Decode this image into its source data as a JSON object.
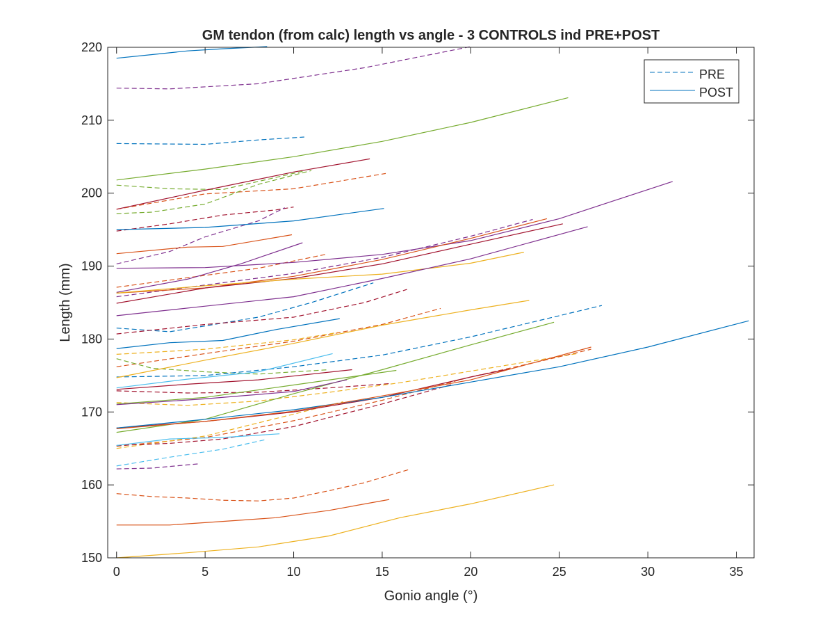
{
  "chart_data": {
    "type": "line",
    "title": "GM tendon (from calc) length vs angle - 3 CONTROLS ind PRE+POST",
    "xlabel": "Gonio angle (°)",
    "ylabel": "Length (mm)",
    "xlim": [
      -0.5,
      36
    ],
    "ylim": [
      150,
      220
    ],
    "xticks": [
      0,
      5,
      10,
      15,
      20,
      25,
      30,
      35
    ],
    "yticks": [
      150,
      160,
      170,
      180,
      190,
      200,
      210,
      220
    ],
    "grid": false,
    "legend": {
      "position": "top-right",
      "entries": [
        {
          "label": "PRE",
          "style": "dashed",
          "color": "#0072BD"
        },
        {
          "label": "POST",
          "style": "solid",
          "color": "#0072BD"
        }
      ]
    },
    "colors": {
      "blue": "#0072BD",
      "orange": "#D95319",
      "yellow": "#EDB120",
      "purple": "#7E2F8E",
      "green": "#77AC30",
      "cyan": "#4DBEEE",
      "maroon": "#A2142F"
    },
    "series": [
      {
        "group": "PRE",
        "color": "blue",
        "x": [
          0,
          5,
          8,
          10.6
        ],
        "y": [
          206.8,
          206.7,
          207.3,
          207.7
        ]
      },
      {
        "group": "PRE",
        "color": "purple",
        "x": [
          0,
          3,
          8,
          14,
          20
        ],
        "y": [
          214.4,
          214.3,
          215.0,
          217.2,
          220.1
        ]
      },
      {
        "group": "PRE",
        "color": "green",
        "x": [
          0,
          3,
          6,
          10.5
        ],
        "y": [
          201.1,
          200.6,
          200.5,
          203.0
        ]
      },
      {
        "group": "PRE",
        "color": "orange",
        "x": [
          0,
          5,
          10,
          15.2
        ],
        "y": [
          197.8,
          199.9,
          200.6,
          202.7
        ]
      },
      {
        "group": "PRE",
        "color": "green",
        "x": [
          0,
          2,
          5,
          8,
          11
        ],
        "y": [
          197.2,
          197.4,
          198.5,
          201.2,
          203.1
        ]
      },
      {
        "group": "PRE",
        "color": "maroon",
        "x": [
          0,
          3,
          6,
          9,
          10
        ],
        "y": [
          194.8,
          195.8,
          197.0,
          197.7,
          198.1
        ]
      },
      {
        "group": "PRE",
        "color": "purple",
        "x": [
          0,
          3,
          5,
          8,
          9.5
        ],
        "y": [
          190.3,
          192.0,
          194.0,
          196.2,
          198.0
        ]
      },
      {
        "group": "PRE",
        "color": "orange",
        "x": [
          0,
          4,
          8,
          11.8
        ],
        "y": [
          187.1,
          188.4,
          189.7,
          191.6
        ]
      },
      {
        "group": "PRE",
        "color": "purple",
        "x": [
          0,
          5,
          10,
          15,
          20,
          23.5
        ],
        "y": [
          185.8,
          187.4,
          189.0,
          191.2,
          194.1,
          196.4
        ]
      },
      {
        "group": "PRE",
        "color": "blue",
        "x": [
          0,
          3,
          5,
          8,
          11,
          14.5
        ],
        "y": [
          181.5,
          181.0,
          181.8,
          183.0,
          185.0,
          187.7
        ]
      },
      {
        "group": "PRE",
        "color": "maroon",
        "x": [
          0,
          5,
          10,
          14,
          16.4
        ],
        "y": [
          180.7,
          182.0,
          183.0,
          185.0,
          186.8
        ]
      },
      {
        "group": "PRE",
        "color": "orange",
        "x": [
          0,
          5,
          10,
          15,
          18.3
        ],
        "y": [
          176.2,
          178.0,
          179.7,
          182.0,
          184.2
        ]
      },
      {
        "group": "PRE",
        "color": "yellow",
        "x": [
          0,
          5,
          10,
          12.5
        ],
        "y": [
          177.9,
          178.6,
          179.9,
          180.9
        ]
      },
      {
        "group": "PRE",
        "color": "green",
        "x": [
          0,
          2,
          5,
          8,
          12
        ],
        "y": [
          177.3,
          176.0,
          175.5,
          175.2,
          175.8
        ]
      },
      {
        "group": "PRE",
        "color": "blue",
        "x": [
          0,
          5,
          10,
          15,
          20,
          25,
          27.4
        ],
        "y": [
          174.8,
          175.0,
          176.2,
          177.8,
          180.3,
          183.2,
          184.6
        ]
      },
      {
        "group": "PRE",
        "color": "maroon",
        "x": [
          0,
          4,
          8,
          12,
          15.5
        ],
        "y": [
          172.9,
          172.6,
          172.7,
          173.3,
          173.9
        ]
      },
      {
        "group": "PRE",
        "color": "yellow",
        "x": [
          0,
          4,
          8,
          12,
          16,
          20,
          26
        ],
        "y": [
          171.3,
          170.9,
          171.5,
          172.7,
          174.0,
          175.6,
          178.0
        ]
      },
      {
        "group": "PRE",
        "color": "orange",
        "x": [
          0,
          5,
          10,
          15,
          20,
          24,
          26.8
        ],
        "y": [
          165.3,
          166.5,
          168.8,
          171.6,
          174.8,
          177.0,
          178.6
        ]
      },
      {
        "group": "PRE",
        "color": "yellow",
        "x": [
          0,
          5,
          10,
          12.8
        ],
        "y": [
          165.0,
          166.7,
          169.7,
          171.4
        ]
      },
      {
        "group": "PRE",
        "color": "maroon",
        "x": [
          0,
          3,
          6,
          10,
          15,
          19
        ],
        "y": [
          165.4,
          165.7,
          166.3,
          168.0,
          171.1,
          173.8
        ]
      },
      {
        "group": "PRE",
        "color": "cyan",
        "x": [
          0,
          3,
          6,
          8.4
        ],
        "y": [
          162.6,
          163.8,
          164.9,
          166.2
        ]
      },
      {
        "group": "PRE",
        "color": "purple",
        "x": [
          0,
          2,
          4.7
        ],
        "y": [
          162.2,
          162.3,
          162.9
        ]
      },
      {
        "group": "PRE",
        "color": "orange",
        "x": [
          0,
          2,
          4,
          6,
          8,
          10,
          12,
          14,
          16.5
        ],
        "y": [
          158.8,
          158.4,
          158.2,
          157.9,
          157.8,
          158.2,
          159.2,
          160.3,
          162.1
        ]
      },
      {
        "group": "POST",
        "color": "blue",
        "x": [
          0,
          2,
          4,
          6,
          8.5
        ],
        "y": [
          218.5,
          219.0,
          219.5,
          219.8,
          220.1
        ]
      },
      {
        "group": "POST",
        "color": "green",
        "x": [
          0,
          5,
          10,
          15,
          20,
          25.5
        ],
        "y": [
          201.8,
          203.3,
          205.0,
          207.1,
          209.7,
          213.1
        ]
      },
      {
        "group": "POST",
        "color": "maroon",
        "x": [
          0,
          5,
          10,
          14.3
        ],
        "y": [
          197.8,
          200.4,
          202.9,
          204.7
        ]
      },
      {
        "group": "POST",
        "color": "blue",
        "x": [
          0,
          5,
          10,
          15.1
        ],
        "y": [
          195.0,
          195.3,
          196.2,
          197.9
        ]
      },
      {
        "group": "POST",
        "color": "orange",
        "x": [
          0,
          4,
          6,
          9.9
        ],
        "y": [
          191.7,
          192.6,
          192.7,
          194.3
        ]
      },
      {
        "group": "POST",
        "color": "purple",
        "x": [
          0,
          4,
          7,
          10.5
        ],
        "y": [
          186.4,
          188.2,
          190.3,
          193.2
        ]
      },
      {
        "group": "POST",
        "color": "purple",
        "x": [
          0,
          5,
          10,
          15,
          20,
          25,
          31.4
        ],
        "y": [
          189.7,
          189.8,
          190.5,
          191.6,
          193.5,
          196.5,
          201.6
        ]
      },
      {
        "group": "POST",
        "color": "orange",
        "x": [
          0,
          5,
          10,
          15,
          20,
          24.3
        ],
        "y": [
          186.3,
          187.0,
          188.6,
          190.9,
          193.8,
          196.5
        ]
      },
      {
        "group": "POST",
        "color": "maroon",
        "x": [
          0,
          5,
          10,
          15,
          20,
          25.2
        ],
        "y": [
          184.9,
          187.0,
          188.3,
          190.3,
          193.0,
          195.8
        ]
      },
      {
        "group": "POST",
        "color": "yellow",
        "x": [
          0,
          5,
          10,
          15,
          20,
          23
        ],
        "y": [
          186.3,
          187.3,
          188.2,
          188.9,
          190.4,
          191.9
        ]
      },
      {
        "group": "POST",
        "color": "purple",
        "x": [
          0,
          5,
          10,
          15,
          20,
          26.6
        ],
        "y": [
          183.2,
          184.5,
          185.8,
          188.3,
          191.0,
          195.4
        ]
      },
      {
        "group": "POST",
        "color": "blue",
        "x": [
          0,
          3,
          6,
          9,
          12.6
        ],
        "y": [
          178.7,
          179.5,
          179.8,
          181.3,
          182.8
        ]
      },
      {
        "group": "POST",
        "color": "yellow",
        "x": [
          0,
          5,
          10,
          15,
          20,
          23.3
        ],
        "y": [
          174.7,
          177.1,
          179.4,
          181.9,
          184.0,
          185.3
        ]
      },
      {
        "group": "POST",
        "color": "cyan",
        "x": [
          0,
          4,
          8,
          12.2
        ],
        "y": [
          173.3,
          174.5,
          175.5,
          178.0
        ]
      },
      {
        "group": "POST",
        "color": "maroon",
        "x": [
          0,
          4,
          8,
          13.3
        ],
        "y": [
          173.1,
          173.8,
          174.4,
          175.8
        ]
      },
      {
        "group": "POST",
        "color": "green",
        "x": [
          0,
          5,
          10,
          15.8
        ],
        "y": [
          171.1,
          172.0,
          173.7,
          175.7
        ]
      },
      {
        "group": "POST",
        "color": "green",
        "x": [
          0,
          5,
          10,
          15,
          20,
          24.7
        ],
        "y": [
          167.2,
          169.0,
          172.5,
          175.8,
          179.2,
          182.3
        ]
      },
      {
        "group": "POST",
        "color": "purple",
        "x": [
          0,
          5,
          10,
          13
        ],
        "y": [
          171.0,
          171.8,
          172.8,
          174.4
        ]
      },
      {
        "group": "POST",
        "color": "maroon",
        "x": [
          0,
          5,
          10,
          15,
          20,
          22.2
        ],
        "y": [
          167.8,
          168.7,
          170.0,
          172.0,
          174.8,
          175.9
        ]
      },
      {
        "group": "POST",
        "color": "blue",
        "x": [
          0,
          5,
          10,
          15,
          20,
          25,
          30,
          35.7
        ],
        "y": [
          167.8,
          169.0,
          170.3,
          172.0,
          174.1,
          176.2,
          178.9,
          182.5
        ]
      },
      {
        "group": "POST",
        "color": "orange",
        "x": [
          0,
          5,
          10,
          15,
          20,
          26.8
        ],
        "y": [
          167.7,
          168.7,
          170.1,
          172.2,
          174.4,
          178.9
        ]
      },
      {
        "group": "POST",
        "color": "cyan",
        "x": [
          0,
          3,
          6,
          9.2
        ],
        "y": [
          165.4,
          166.3,
          166.5,
          167.0
        ]
      },
      {
        "group": "POST",
        "color": "orange",
        "x": [
          0,
          3,
          6,
          9,
          12,
          15.4
        ],
        "y": [
          154.5,
          154.5,
          155.0,
          155.5,
          156.5,
          158.0
        ]
      },
      {
        "group": "POST",
        "color": "yellow",
        "x": [
          0,
          4,
          8,
          12,
          16,
          20,
          24.7
        ],
        "y": [
          150.0,
          150.7,
          151.5,
          153.0,
          155.5,
          157.4,
          160.0
        ]
      }
    ]
  }
}
